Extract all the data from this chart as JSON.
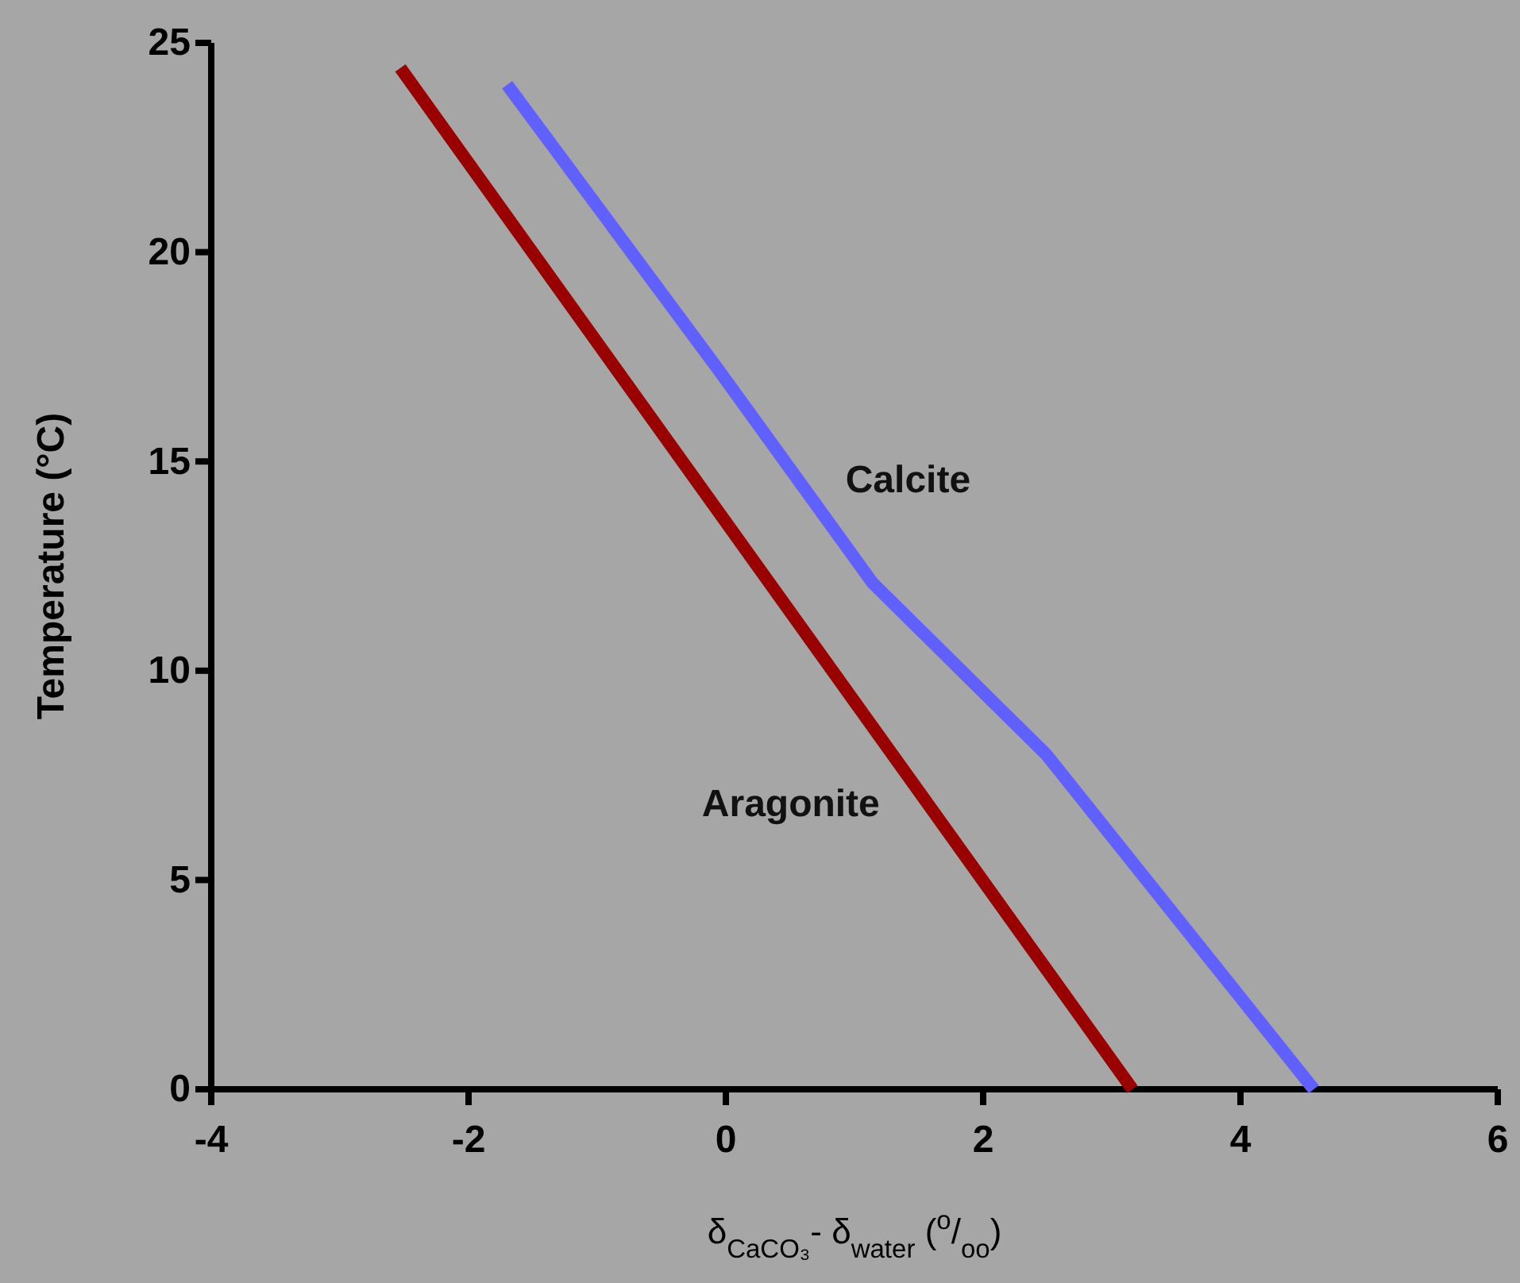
{
  "chart_data": {
    "type": "line",
    "xlabel": "δ$_{CaCO₃}$- δ$_{water}$ ($^{o}$/$_{oo}$)",
    "ylabel": "Temperature (°C)",
    "xlim": [
      -4,
      6
    ],
    "xticks": [
      -4,
      -2,
      0,
      2,
      4,
      6
    ],
    "ylim": [
      0,
      25
    ],
    "yticks": [
      0,
      5,
      10,
      15,
      20,
      25
    ],
    "marker": "none",
    "line_style": "solid",
    "series": [
      {
        "name": "Aragonite",
        "color": "#990000",
        "x": [
          -2.53,
          3.16
        ],
        "values": [
          24.4,
          0
        ]
      },
      {
        "name": "Calcite",
        "color": "#6060ff",
        "x": [
          -1.7,
          -0.06,
          1.14,
          2.49,
          4.57
        ],
        "values": [
          24,
          17.2,
          12.1,
          8,
          0
        ]
      }
    ]
  }
}
